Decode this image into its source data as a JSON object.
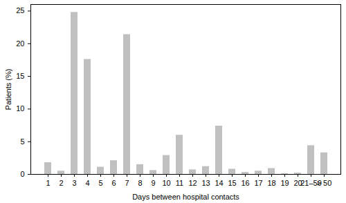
{
  "chart_data": {
    "type": "bar",
    "x_label": "Days between hospital contacts",
    "y_label": "Patients (%)",
    "categories": [
      "1",
      "2",
      "3",
      "4",
      "5",
      "6",
      "7",
      "8",
      "9",
      "10",
      "11",
      "12",
      "13",
      "14",
      "15",
      "16",
      "17",
      "18",
      "19",
      "20",
      "21–50",
      "> 50"
    ],
    "values": [
      1.8,
      0.5,
      24.8,
      17.6,
      1.1,
      2.1,
      21.4,
      1.5,
      0.6,
      2.9,
      6.0,
      0.7,
      1.2,
      7.4,
      0.8,
      0.3,
      0.5,
      0.9,
      0.1,
      0.2,
      4.4,
      3.3
    ],
    "color": "#c0c0c0",
    "ylim": [
      0,
      26
    ],
    "yticks": [
      0,
      5,
      10,
      15,
      20,
      25
    ],
    "grid": false
  }
}
